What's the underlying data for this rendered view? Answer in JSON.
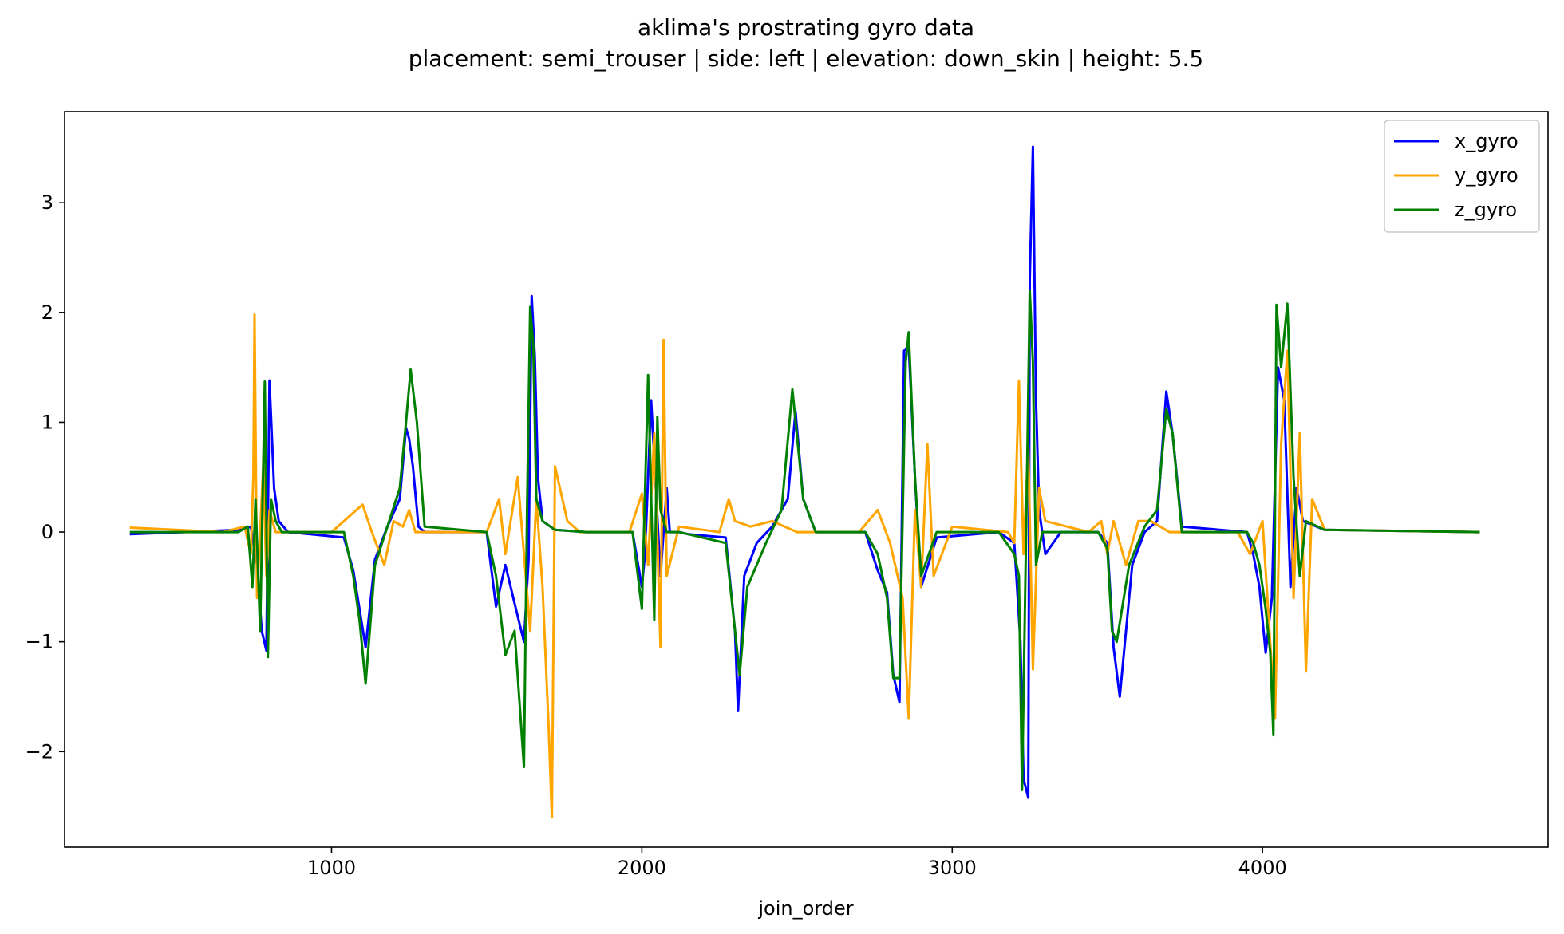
{
  "chart_data": {
    "type": "line",
    "title": "aklima's prostrating gyro data",
    "subtitle": "placement: semi_trouser | side: left | elevation: down_skin | height: 5.5",
    "xlabel": "join_order",
    "ylabel": "",
    "xlim": [
      140,
      4920
    ],
    "ylim": [
      -2.87,
      3.83
    ],
    "xticks": [
      1000,
      2000,
      3000,
      4000
    ],
    "yticks": [
      -2,
      -1,
      0,
      1,
      2,
      3
    ],
    "grid": false,
    "legend_position": "top-right",
    "series": [
      {
        "name": "x_gyro",
        "color": "#0000ff",
        "x": [
          350,
          700,
          740,
          760,
          775,
          790,
          800,
          815,
          830,
          860,
          1040,
          1070,
          1090,
          1110,
          1140,
          1180,
          1220,
          1240,
          1250,
          1262,
          1280,
          1300,
          1500,
          1530,
          1560,
          1590,
          1620,
          1635,
          1645,
          1655,
          1665,
          1680,
          1720,
          1820,
          1970,
          2000,
          2010,
          2030,
          2060,
          2080,
          2090,
          2120,
          2150,
          2270,
          2300,
          2310,
          2330,
          2370,
          2420,
          2470,
          2495,
          2520,
          2560,
          2720,
          2760,
          2790,
          2810,
          2830,
          2845,
          2860,
          2880,
          2900,
          2950,
          3150,
          3200,
          3220,
          3230,
          3245,
          3250,
          3260,
          3270,
          3280,
          3300,
          3350,
          3470,
          3500,
          3520,
          3540,
          3580,
          3620,
          3660,
          3690,
          3710,
          3740,
          3950,
          3970,
          3990,
          4010,
          4030,
          4050,
          4070,
          4090,
          4110,
          4130,
          4200,
          4700
        ],
        "y": [
          -0.02,
          0.02,
          0.05,
          -0.3,
          -0.9,
          -1.08,
          1.38,
          0.4,
          0.1,
          0.0,
          -0.05,
          -0.35,
          -0.7,
          -1.05,
          -0.25,
          0.05,
          0.3,
          0.95,
          0.85,
          0.6,
          0.05,
          0.0,
          0.0,
          -0.68,
          -0.3,
          -0.65,
          -1.0,
          -0.25,
          2.15,
          1.6,
          0.5,
          0.1,
          0.02,
          0.0,
          0.0,
          -0.5,
          -0.2,
          1.2,
          -0.4,
          0.4,
          0.0,
          0.0,
          -0.02,
          -0.05,
          -0.9,
          -1.63,
          -0.4,
          -0.1,
          0.05,
          0.3,
          1.1,
          0.3,
          0.0,
          0.0,
          -0.35,
          -0.55,
          -1.3,
          -1.55,
          1.65,
          1.7,
          0.5,
          -0.5,
          -0.05,
          0.0,
          -0.1,
          -1.0,
          -2.25,
          -2.42,
          2.3,
          3.51,
          1.2,
          0.2,
          -0.2,
          0.0,
          0.0,
          -0.1,
          -1.05,
          -1.5,
          -0.3,
          0.0,
          0.1,
          1.28,
          0.9,
          0.05,
          0.0,
          -0.2,
          -0.5,
          -1.1,
          -0.6,
          1.5,
          1.2,
          -0.5,
          0.4,
          0.1,
          0.02,
          0.0
        ]
      },
      {
        "name": "y_gyro",
        "color": "#ffa500",
        "x": [
          350,
          650,
          720,
          740,
          748,
          752,
          760,
          780,
          790,
          800,
          820,
          840,
          1000,
          1060,
          1100,
          1130,
          1170,
          1200,
          1230,
          1250,
          1270,
          1500,
          1540,
          1560,
          1600,
          1640,
          1660,
          1680,
          1700,
          1710,
          1720,
          1760,
          1800,
          1960,
          2000,
          2020,
          2040,
          2060,
          2070,
          2080,
          2120,
          2250,
          2280,
          2300,
          2350,
          2420,
          2500,
          2700,
          2760,
          2800,
          2840,
          2860,
          2880,
          2900,
          2920,
          2940,
          3000,
          3180,
          3200,
          3215,
          3230,
          3245,
          3260,
          3280,
          3300,
          3440,
          3480,
          3500,
          3520,
          3560,
          3600,
          3640,
          3700,
          3750,
          3920,
          3960,
          4000,
          4040,
          4060,
          4080,
          4100,
          4120,
          4140,
          4160,
          4200,
          4700
        ],
        "y": [
          0.04,
          0.0,
          0.05,
          -0.2,
          0.5,
          1.98,
          -0.6,
          0.6,
          -0.4,
          0.2,
          0.0,
          0.0,
          0.0,
          0.15,
          0.25,
          0.0,
          -0.3,
          0.1,
          0.05,
          0.2,
          0.0,
          0.0,
          0.3,
          -0.2,
          0.5,
          -0.9,
          0.3,
          -0.5,
          -1.8,
          -2.6,
          0.6,
          0.1,
          0.0,
          0.0,
          0.35,
          -0.3,
          0.9,
          -1.05,
          1.75,
          -0.4,
          0.05,
          0.0,
          0.3,
          0.1,
          0.05,
          0.1,
          0.0,
          0.0,
          0.2,
          -0.1,
          -0.6,
          -1.7,
          0.2,
          -0.5,
          0.8,
          -0.4,
          0.05,
          0.0,
          -0.1,
          1.38,
          -0.2,
          0.8,
          -1.25,
          0.4,
          0.1,
          0.0,
          0.1,
          -0.2,
          0.1,
          -0.3,
          0.1,
          0.1,
          0.0,
          0.0,
          0.0,
          -0.2,
          0.1,
          -1.7,
          0.8,
          1.65,
          -0.6,
          0.9,
          -1.27,
          0.3,
          0.02,
          0.0
        ]
      },
      {
        "name": "z_gyro",
        "color": "#008000",
        "x": [
          350,
          700,
          730,
          745,
          755,
          770,
          785,
          795,
          805,
          820,
          840,
          1040,
          1070,
          1090,
          1110,
          1140,
          1180,
          1220,
          1240,
          1255,
          1275,
          1300,
          1500,
          1530,
          1560,
          1590,
          1620,
          1630,
          1640,
          1650,
          1660,
          1680,
          1720,
          1820,
          1970,
          2000,
          2020,
          2040,
          2050,
          2060,
          2080,
          2120,
          2270,
          2300,
          2315,
          2340,
          2400,
          2450,
          2485,
          2520,
          2560,
          2720,
          2760,
          2790,
          2810,
          2830,
          2850,
          2860,
          2880,
          2900,
          2950,
          3150,
          3200,
          3215,
          3225,
          3240,
          3250,
          3260,
          3270,
          3290,
          3340,
          3470,
          3500,
          3515,
          3530,
          3570,
          3620,
          3660,
          3690,
          3710,
          3740,
          3950,
          3970,
          3990,
          4010,
          4025,
          4035,
          4045,
          4060,
          4080,
          4100,
          4120,
          4140,
          4200,
          4700
        ],
        "y": [
          0.0,
          0.0,
          0.05,
          -0.5,
          0.3,
          -0.9,
          1.37,
          -1.14,
          0.3,
          0.1,
          0.0,
          0.0,
          -0.4,
          -0.8,
          -1.38,
          -0.3,
          0.05,
          0.4,
          1.0,
          1.48,
          1.0,
          0.05,
          0.0,
          -0.4,
          -1.12,
          -0.9,
          -2.14,
          0.2,
          2.05,
          1.7,
          0.3,
          0.1,
          0.02,
          0.0,
          0.0,
          -0.7,
          1.43,
          -0.8,
          1.05,
          0.2,
          0.0,
          0.0,
          -0.1,
          -0.9,
          -1.3,
          -0.5,
          -0.1,
          0.2,
          1.3,
          0.3,
          0.0,
          0.0,
          -0.2,
          -0.6,
          -1.33,
          -1.33,
          1.55,
          1.82,
          0.5,
          -0.4,
          0.0,
          0.0,
          -0.2,
          -0.4,
          -2.35,
          0.3,
          2.2,
          1.55,
          -0.3,
          0.0,
          0.0,
          0.0,
          -0.15,
          -0.9,
          -1.0,
          -0.3,
          0.05,
          0.2,
          1.12,
          0.9,
          0.0,
          0.0,
          -0.1,
          -0.3,
          -0.7,
          -1.1,
          -1.85,
          2.07,
          1.5,
          2.08,
          0.5,
          -0.4,
          0.1,
          0.02,
          0.0
        ]
      }
    ]
  }
}
